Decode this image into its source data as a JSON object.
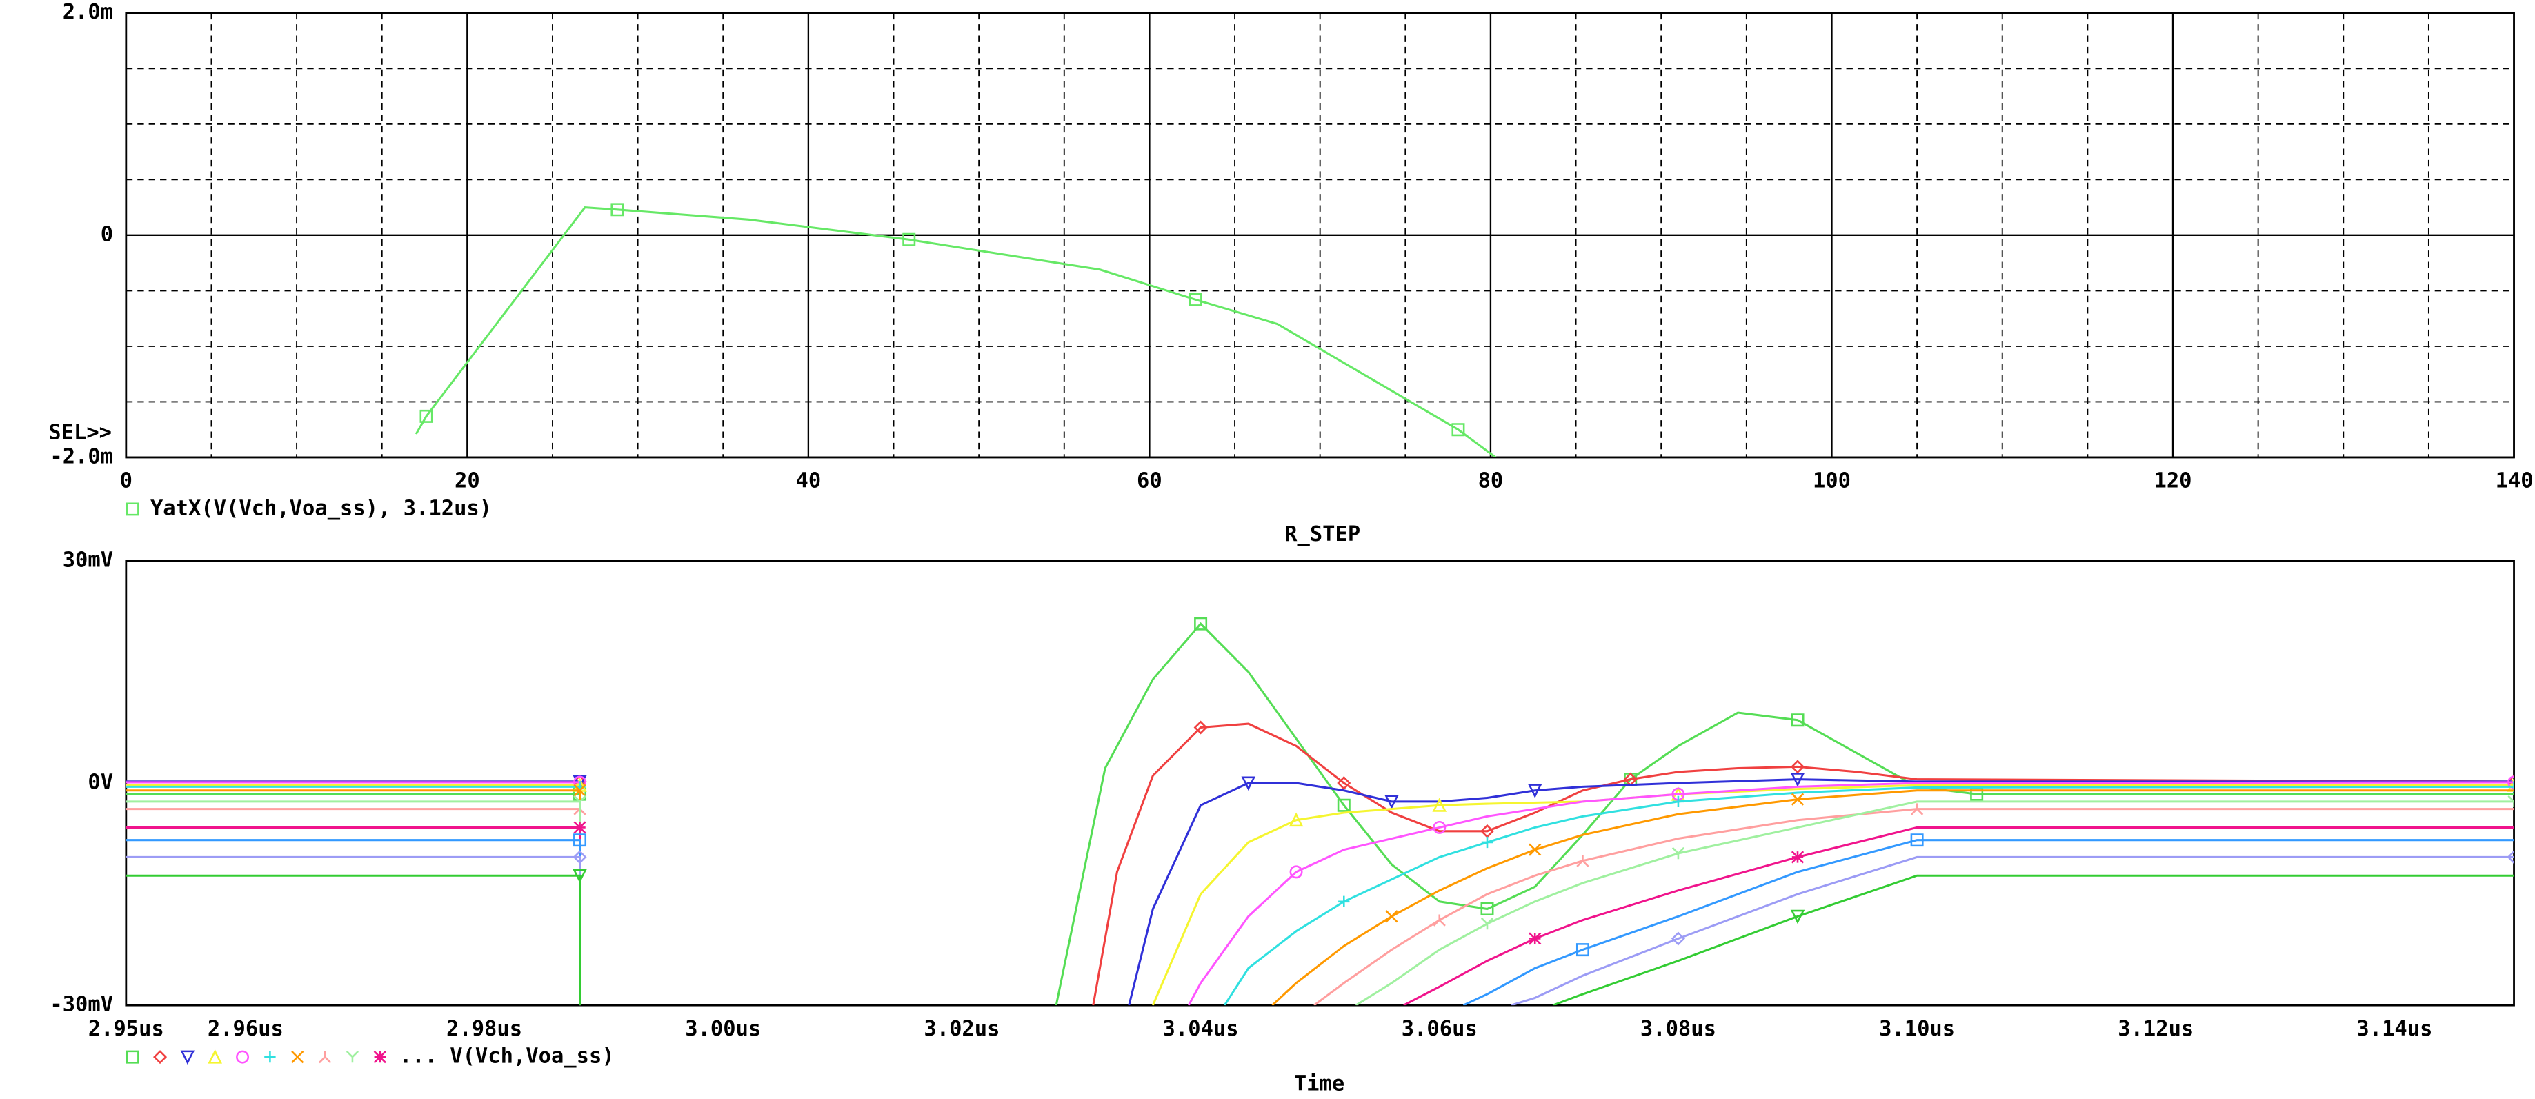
{
  "chart_data": [
    {
      "type": "line",
      "xlabel": "R_STEP",
      "annotation": "SEL>>",
      "xlim": [
        0,
        140
      ],
      "xticks": [
        0,
        20,
        40,
        60,
        80,
        100,
        120,
        140
      ],
      "ylim": [
        -0.002,
        0.002
      ],
      "yticks": [
        {
          "value": -0.002,
          "label": "-2.0m"
        },
        0,
        {
          "value": 0.002,
          "label": "2.0m"
        }
      ],
      "grid": true,
      "series": [
        {
          "name": "YatX(V(Vch,Voa_ss), 3.12us)",
          "color": "#66e866",
          "marker": "square",
          "x": [
            17,
            17.6,
            26.9,
            28.8,
            36.5,
            45.9,
            57.1,
            62.7,
            67.5,
            78.1,
            80.3
          ],
          "values": [
            -0.00179,
            -0.00163,
            0.00025,
            0.00023,
            0.00014,
            -4e-05,
            -0.00031,
            -0.00058,
            -0.0008,
            -0.00175,
            -0.002
          ]
        }
      ]
    },
    {
      "type": "line",
      "xlabel": "Time",
      "legend_label": "... V(Vch,Voa_ss)",
      "xlim": [
        2.95e-06,
        3.15e-06
      ],
      "xticks": [
        {
          "value": 2.95e-06,
          "label": "2.95us"
        },
        {
          "value": 2.96e-06,
          "label": "2.96us"
        },
        {
          "value": 2.98e-06,
          "label": "2.98us"
        },
        {
          "value": 3e-06,
          "label": "3.00us"
        },
        {
          "value": 3.02e-06,
          "label": "3.02us"
        },
        {
          "value": 3.04e-06,
          "label": "3.04us"
        },
        {
          "value": 3.06e-06,
          "label": "3.06us"
        },
        {
          "value": 3.08e-06,
          "label": "3.08us"
        },
        {
          "value": 3.1e-06,
          "label": "3.10us"
        },
        {
          "value": 3.12e-06,
          "label": "3.12us"
        },
        {
          "value": 3.14e-06,
          "label": "3.14us"
        }
      ],
      "ylim": [
        -0.03,
        0.03
      ],
      "yticks": [
        {
          "value": -0.03,
          "label": "-30mV"
        },
        {
          "value": 0,
          "label": "0V"
        },
        {
          "value": 0.03,
          "label": "30mV"
        }
      ],
      "grid": false,
      "series": [
        {
          "color": "#55dd55",
          "marker": "square",
          "x": [
            2.95e-06,
            2.988e-06,
            2.988e-06,
            2.9881e-06,
            3.0279e-06,
            3.032e-06,
            3.036e-06,
            3.04e-06,
            3.044e-06,
            3.048e-06,
            3.052e-06,
            3.056e-06,
            3.06e-06,
            3.064e-06,
            3.068e-06,
            3.072e-06,
            3.076e-06,
            3.08e-06,
            3.085e-06,
            3.09e-06,
            3.095e-06,
            3.1e-06,
            3.105e-06,
            3.15e-06
          ],
          "values": [
            -0.0015,
            -0.0015,
            -0.03,
            null,
            -0.03,
            0.002,
            0.014,
            0.0215,
            0.015,
            0.006,
            -0.003,
            -0.011,
            -0.016,
            -0.017,
            -0.014,
            -0.007,
            0.0005,
            0.005,
            0.0095,
            0.0085,
            0.004,
            -0.0005,
            -0.0015,
            -0.0015
          ]
        },
        {
          "color": "#f04040",
          "marker": "diamond",
          "x": [
            2.95e-06,
            2.988e-06,
            2.988e-06,
            2.9881e-06,
            3.031e-06,
            3.033e-06,
            3.036e-06,
            3.04e-06,
            3.044e-06,
            3.048e-06,
            3.052e-06,
            3.056e-06,
            3.06e-06,
            3.064e-06,
            3.068e-06,
            3.072e-06,
            3.076e-06,
            3.08e-06,
            3.085e-06,
            3.09e-06,
            3.095e-06,
            3.1e-06,
            3.15e-06
          ],
          "values": [
            0.0002,
            0.0002,
            -0.03,
            null,
            -0.03,
            -0.012,
            0.001,
            0.0075,
            0.008,
            0.005,
            0.0,
            -0.004,
            -0.0065,
            -0.0065,
            -0.004,
            -0.001,
            0.0005,
            0.0015,
            0.002,
            0.0022,
            0.0015,
            0.0005,
            0.0002
          ]
        },
        {
          "color": "#3030d8",
          "marker": "tri-down",
          "x": [
            2.95e-06,
            2.988e-06,
            2.988e-06,
            2.9881e-06,
            3.034e-06,
            3.036e-06,
            3.04e-06,
            3.044e-06,
            3.048e-06,
            3.052e-06,
            3.056e-06,
            3.06e-06,
            3.064e-06,
            3.068e-06,
            3.072e-06,
            3.08e-06,
            3.09e-06,
            3.1e-06,
            3.15e-06
          ],
          "values": [
            0.0002,
            0.0002,
            -0.03,
            null,
            -0.03,
            -0.017,
            -0.003,
            0.0,
            0.0,
            -0.001,
            -0.0025,
            -0.0025,
            -0.002,
            -0.001,
            -0.0005,
            0.0,
            0.0005,
            0.0002,
            0.0002
          ]
        },
        {
          "color": "#f5f530",
          "marker": "tri-up",
          "x": [
            2.95e-06,
            2.988e-06,
            2.988e-06,
            2.9881e-06,
            3.036e-06,
            3.04e-06,
            3.044e-06,
            3.048e-06,
            3.052e-06,
            3.056e-06,
            3.06e-06,
            3.064e-06,
            3.072e-06,
            3.08e-06,
            3.09e-06,
            3.1e-06,
            3.15e-06
          ],
          "values": [
            -0.0003,
            -0.0003,
            -0.03,
            null,
            -0.03,
            -0.015,
            -0.008,
            -0.005,
            -0.004,
            -0.0035,
            -0.003,
            -0.0028,
            -0.0025,
            -0.0015,
            -0.0008,
            -0.0003,
            -0.0003
          ]
        },
        {
          "color": "#ff55ff",
          "marker": "circle",
          "x": [
            2.95e-06,
            2.988e-06,
            2.988e-06,
            2.9881e-06,
            3.039e-06,
            3.04e-06,
            3.044e-06,
            3.048e-06,
            3.052e-06,
            3.056e-06,
            3.06e-06,
            3.064e-06,
            3.072e-06,
            3.08e-06,
            3.09e-06,
            3.1e-06,
            3.15e-06
          ],
          "values": [
            0.0001,
            0.0001,
            -0.03,
            null,
            -0.03,
            -0.027,
            -0.018,
            -0.012,
            -0.009,
            -0.0075,
            -0.006,
            -0.0045,
            -0.0025,
            -0.0015,
            -0.0005,
            0.0,
            0.0001
          ]
        },
        {
          "color": "#30e0e0",
          "marker": "plus",
          "x": [
            2.95e-06,
            2.988e-06,
            2.988e-06,
            2.9881e-06,
            3.042e-06,
            3.044e-06,
            3.048e-06,
            3.052e-06,
            3.056e-06,
            3.06e-06,
            3.064e-06,
            3.068e-06,
            3.072e-06,
            3.08e-06,
            3.09e-06,
            3.1e-06,
            3.15e-06
          ],
          "values": [
            -0.0005,
            -0.0005,
            -0.03,
            null,
            -0.03,
            -0.025,
            -0.02,
            -0.016,
            -0.013,
            -0.01,
            -0.008,
            -0.006,
            -0.0045,
            -0.0025,
            -0.0013,
            -0.0006,
            -0.0005
          ]
        },
        {
          "color": "#ff9900",
          "marker": "x",
          "x": [
            2.95e-06,
            2.988e-06,
            2.988e-06,
            2.9881e-06,
            3.046e-06,
            3.048e-06,
            3.052e-06,
            3.056e-06,
            3.06e-06,
            3.064e-06,
            3.068e-06,
            3.072e-06,
            3.08e-06,
            3.09e-06,
            3.1e-06,
            3.15e-06
          ],
          "values": [
            -0.001,
            -0.001,
            -0.03,
            null,
            -0.03,
            -0.027,
            -0.022,
            -0.018,
            -0.0145,
            -0.0115,
            -0.009,
            -0.007,
            -0.0042,
            -0.0022,
            -0.001,
            -0.001
          ]
        },
        {
          "color": "#ff9f9f",
          "marker": "lambda",
          "x": [
            2.95e-06,
            2.988e-06,
            2.988e-06,
            2.9881e-06,
            3.0495e-06,
            3.052e-06,
            3.056e-06,
            3.06e-06,
            3.064e-06,
            3.068e-06,
            3.072e-06,
            3.08e-06,
            3.09e-06,
            3.1e-06,
            3.15e-06
          ],
          "values": [
            -0.0035,
            -0.0035,
            -0.03,
            null,
            -0.03,
            -0.027,
            -0.0225,
            -0.0185,
            -0.015,
            -0.0125,
            -0.0105,
            -0.0075,
            -0.005,
            -0.0035,
            -0.0035
          ]
        },
        {
          "color": "#a0f0a0",
          "marker": "y",
          "x": [
            2.95e-06,
            2.988e-06,
            2.988e-06,
            2.9881e-06,
            3.053e-06,
            3.056e-06,
            3.06e-06,
            3.064e-06,
            3.068e-06,
            3.072e-06,
            3.08e-06,
            3.09e-06,
            3.1e-06,
            3.15e-06
          ],
          "values": [
            -0.0025,
            -0.0025,
            -0.03,
            null,
            -0.03,
            -0.027,
            -0.0225,
            -0.019,
            -0.016,
            -0.0135,
            -0.0095,
            -0.006,
            -0.0025,
            -0.0025
          ]
        },
        {
          "color": "#f0148c",
          "marker": "star",
          "x": [
            2.95e-06,
            2.988e-06,
            2.988e-06,
            2.9881e-06,
            3.057e-06,
            3.06e-06,
            3.064e-06,
            3.068e-06,
            3.072e-06,
            3.08e-06,
            3.09e-06,
            3.1e-06,
            3.15e-06
          ],
          "values": [
            -0.006,
            -0.006,
            -0.03,
            null,
            -0.03,
            -0.0275,
            -0.024,
            -0.021,
            -0.0185,
            -0.0145,
            -0.01,
            -0.006,
            -0.006
          ]
        },
        {
          "color": "#3399ff",
          "marker": "square",
          "x": [
            2.95e-06,
            2.988e-06,
            2.988e-06,
            2.9881e-06,
            3.062e-06,
            3.064e-06,
            3.068e-06,
            3.072e-06,
            3.08e-06,
            3.09e-06,
            3.1e-06,
            3.15e-06
          ],
          "values": [
            -0.0077,
            -0.0077,
            -0.03,
            null,
            -0.03,
            -0.0285,
            -0.025,
            -0.0225,
            -0.018,
            -0.012,
            -0.0077,
            -0.0077
          ]
        },
        {
          "color": "#9c9cf5",
          "marker": "diamond",
          "x": [
            2.95e-06,
            2.988e-06,
            2.988e-06,
            2.9881e-06,
            3.066e-06,
            3.068e-06,
            3.072e-06,
            3.08e-06,
            3.09e-06,
            3.1e-06,
            3.15e-06
          ],
          "values": [
            -0.01,
            -0.01,
            -0.03,
            null,
            -0.03,
            -0.029,
            -0.026,
            -0.021,
            -0.015,
            -0.01,
            -0.01
          ]
        },
        {
          "color": "#33cc33",
          "marker": "tri-down",
          "x": [
            2.95e-06,
            2.988e-06,
            2.988e-06,
            2.9881e-06,
            3.0695e-06,
            3.072e-06,
            3.08e-06,
            3.09e-06,
            3.1e-06,
            3.15e-06
          ],
          "values": [
            -0.0125,
            -0.0125,
            -0.03,
            null,
            -0.03,
            -0.0285,
            -0.024,
            -0.018,
            -0.0125,
            -0.0125
          ]
        }
      ]
    }
  ]
}
